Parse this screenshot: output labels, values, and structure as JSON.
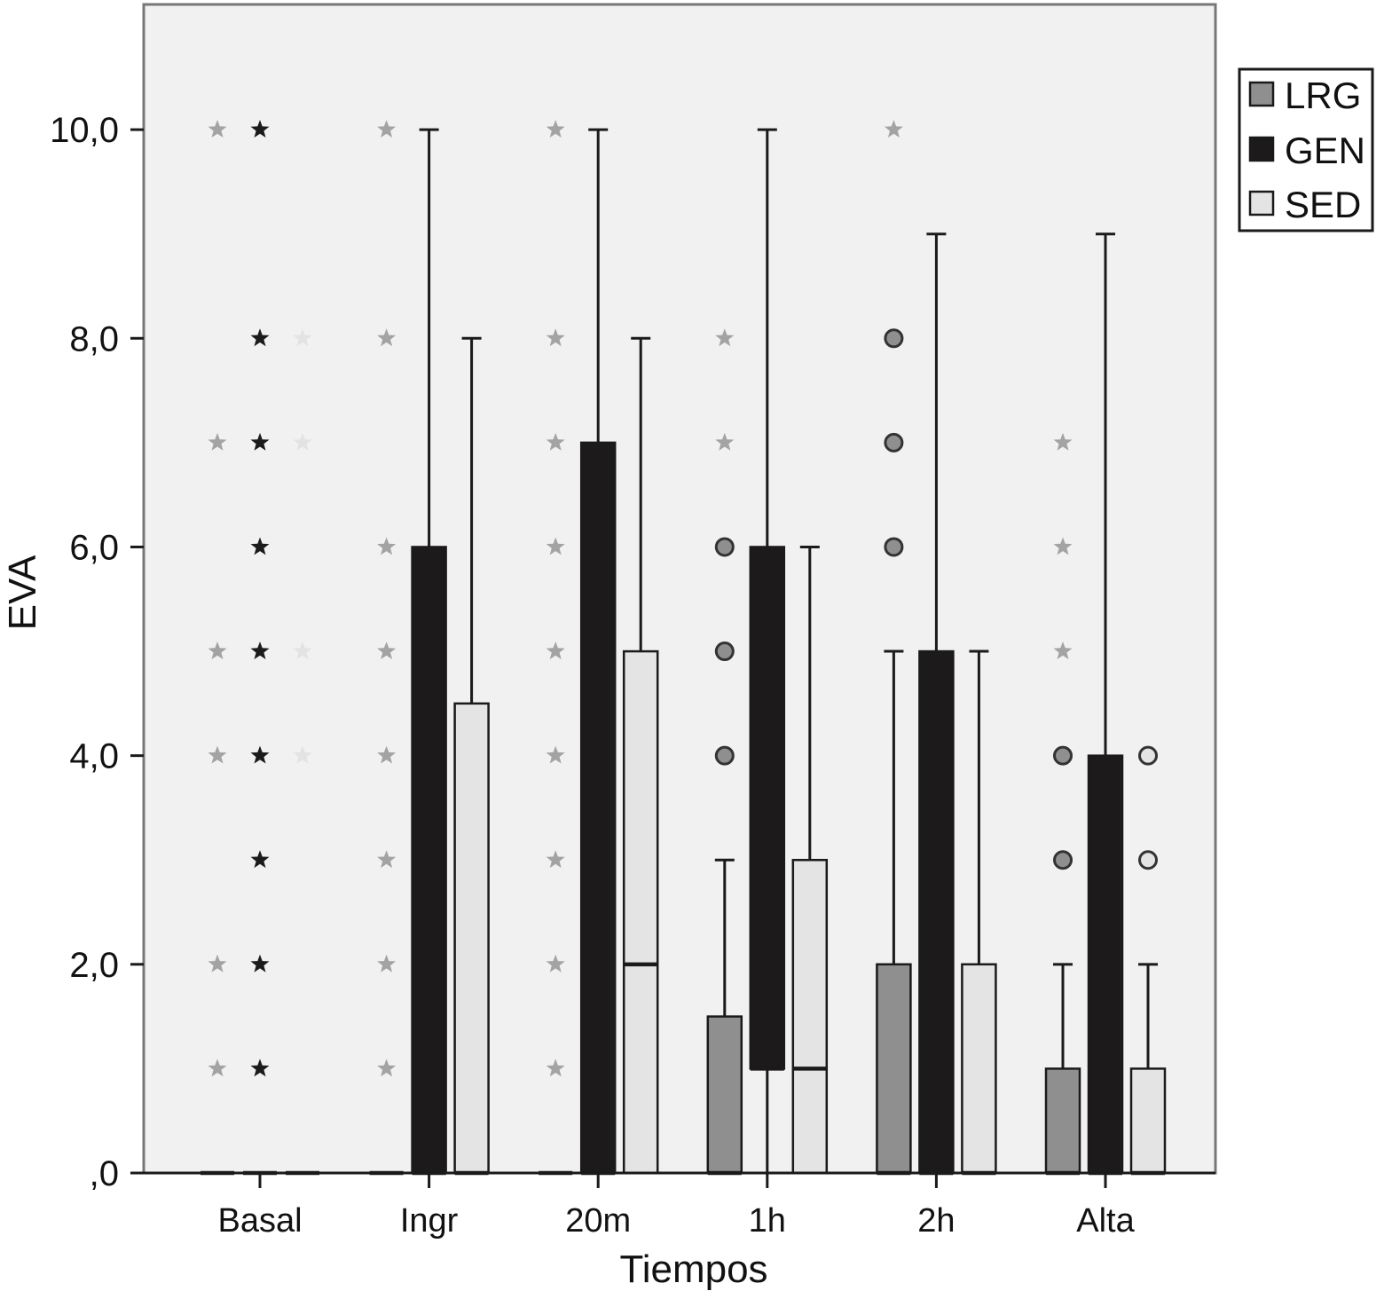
{
  "chart_data": {
    "type": "boxplot",
    "xlabel": "Tiempos",
    "ylabel": "EVA",
    "ylim": [
      0,
      11.2
    ],
    "yticks": [
      {
        "value": 0,
        "label": ",0"
      },
      {
        "value": 2,
        "label": "2,0"
      },
      {
        "value": 4,
        "label": "4,0"
      },
      {
        "value": 6,
        "label": "6,0"
      },
      {
        "value": 8,
        "label": "8,0"
      },
      {
        "value": 10,
        "label": "10,0"
      }
    ],
    "categories": [
      "Basal",
      "Ingr",
      "20m",
      "1h",
      "2h",
      "Alta"
    ],
    "grid": false,
    "legend_position": "top-right",
    "series": [
      {
        "name": "LRG",
        "color": "#8f8f8f",
        "boxes": [
          {
            "q1": 0,
            "median": 0,
            "q3": 0,
            "whisker_low": 0,
            "whisker_high": 0,
            "extremes": [
              1,
              2,
              4,
              5,
              7,
              10
            ],
            "outliers": []
          },
          {
            "q1": 0,
            "median": 0,
            "q3": 0,
            "whisker_low": 0,
            "whisker_high": 0,
            "extremes": [
              1,
              2,
              3,
              4,
              5,
              6,
              8,
              10
            ],
            "outliers": []
          },
          {
            "q1": 0,
            "median": 0,
            "q3": 0,
            "whisker_low": 0,
            "whisker_high": 0,
            "extremes": [
              1,
              2,
              3,
              4,
              5,
              6,
              7,
              8,
              10
            ],
            "outliers": []
          },
          {
            "q1": 0,
            "median": 0,
            "q3": 1.5,
            "whisker_low": 0,
            "whisker_high": 3,
            "extremes": [
              7,
              8
            ],
            "outliers": [
              4,
              5,
              6
            ]
          },
          {
            "q1": 0,
            "median": 0,
            "q3": 2,
            "whisker_low": 0,
            "whisker_high": 5,
            "extremes": [
              10
            ],
            "outliers": [
              6,
              7,
              8
            ]
          },
          {
            "q1": 0,
            "median": 0,
            "q3": 1,
            "whisker_low": 0,
            "whisker_high": 2,
            "extremes": [
              5,
              6,
              7
            ],
            "outliers": [
              3,
              4
            ]
          }
        ]
      },
      {
        "name": "GEN",
        "color": "#1c1a1b",
        "boxes": [
          {
            "q1": 0,
            "median": 0,
            "q3": 0,
            "whisker_low": 0,
            "whisker_high": 0,
            "extremes": [
              1,
              2,
              3,
              4,
              5,
              6,
              7,
              8,
              10
            ],
            "outliers": []
          },
          {
            "q1": 0,
            "median": 0,
            "q3": 6,
            "whisker_low": 0,
            "whisker_high": 10,
            "extremes": [],
            "outliers": []
          },
          {
            "q1": 0,
            "median": 0,
            "q3": 7,
            "whisker_low": 0,
            "whisker_high": 10,
            "extremes": [],
            "outliers": []
          },
          {
            "q1": 1,
            "median": 1,
            "q3": 6,
            "whisker_low": 0,
            "whisker_high": 10,
            "extremes": [],
            "outliers": []
          },
          {
            "q1": 0,
            "median": 0,
            "q3": 5,
            "whisker_low": 0,
            "whisker_high": 9,
            "extremes": [],
            "outliers": []
          },
          {
            "q1": 0,
            "median": 0,
            "q3": 4,
            "whisker_low": 0,
            "whisker_high": 9,
            "extremes": [],
            "outliers": []
          }
        ]
      },
      {
        "name": "SED",
        "color": "#e4e4e4",
        "boxes": [
          {
            "q1": 0,
            "median": 0,
            "q3": 0,
            "whisker_low": 0,
            "whisker_high": 0,
            "extremes": [
              4,
              5,
              7,
              8
            ],
            "outliers": []
          },
          {
            "q1": 0,
            "median": 0,
            "q3": 4.5,
            "whisker_low": 0,
            "whisker_high": 8,
            "extremes": [],
            "outliers": []
          },
          {
            "q1": 0,
            "median": 2,
            "q3": 5,
            "whisker_low": 0,
            "whisker_high": 8,
            "extremes": [],
            "outliers": []
          },
          {
            "q1": 0,
            "median": 1,
            "q3": 3,
            "whisker_low": 0,
            "whisker_high": 6,
            "extremes": [],
            "outliers": []
          },
          {
            "q1": 0,
            "median": 0,
            "q3": 2,
            "whisker_low": 0,
            "whisker_high": 5,
            "extremes": [],
            "outliers": []
          },
          {
            "q1": 0,
            "median": 0,
            "q3": 1,
            "whisker_low": 0,
            "whisker_high": 2,
            "extremes": [],
            "outliers": [
              3,
              4
            ]
          }
        ]
      }
    ]
  },
  "colors": {
    "plot_background": "#f0f1f0",
    "frame": "#777777",
    "outline": "#1a1a1a"
  }
}
